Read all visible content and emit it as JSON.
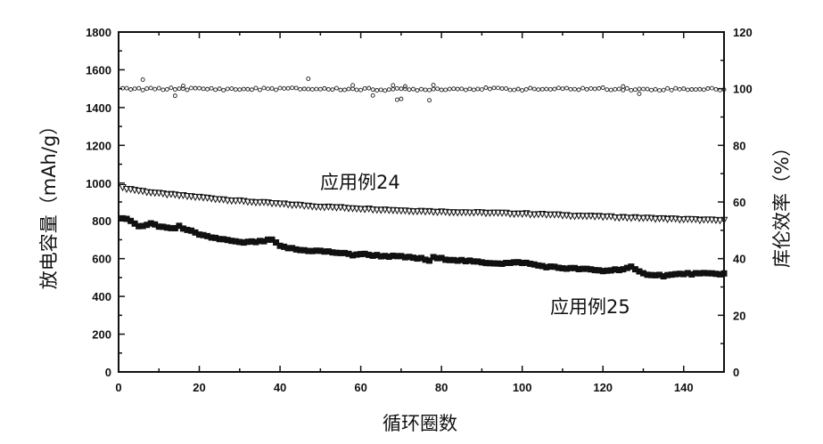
{
  "chart_data": {
    "type": "scatter",
    "title": "",
    "xlabel": "循环圈数",
    "ylabel": "放电容量（mAh/g）",
    "y2label": "库伦效率（%）",
    "xlim": [
      0,
      150
    ],
    "ylim": [
      0,
      1800
    ],
    "y2lim": [
      0,
      120
    ],
    "x_ticks": [
      "0",
      "20",
      "40",
      "60",
      "80",
      "100",
      "120",
      "140"
    ],
    "y_ticks": [
      "0",
      "200",
      "400",
      "600",
      "800",
      "1000",
      "1200",
      "1400",
      "1600",
      "1800"
    ],
    "y2_ticks": [
      "0",
      "20",
      "40",
      "60",
      "80",
      "100",
      "120"
    ],
    "grid": false,
    "annotations": [
      {
        "text": "应用例24",
        "x": 72,
        "y": 1010
      },
      {
        "text": "应用例25",
        "x": 107,
        "y": 370
      }
    ],
    "series": [
      {
        "axis": "left",
        "marker": "down-triangle",
        "x": [
          1,
          5,
          10,
          20,
          30,
          40,
          50,
          60,
          70,
          80,
          90,
          100,
          110,
          120,
          130,
          140,
          150
        ],
        "values": [
          975,
          960,
          945,
          925,
          905,
          890,
          875,
          865,
          855,
          848,
          843,
          838,
          830,
          822,
          815,
          808,
          802
        ]
      },
      {
        "axis": "left",
        "marker": "square",
        "x": [
          1,
          3,
          5,
          8,
          10,
          14,
          15,
          17,
          20,
          25,
          30,
          35,
          38,
          40,
          45,
          50,
          55,
          58,
          60,
          62,
          65,
          70,
          75,
          77,
          78,
          80,
          85,
          90,
          95,
          100,
          105,
          110,
          115,
          120,
          125,
          127,
          128,
          130,
          135,
          140,
          145,
          150
        ],
        "values": [
          815,
          800,
          770,
          785,
          770,
          760,
          770,
          755,
          725,
          705,
          685,
          690,
          700,
          665,
          645,
          640,
          630,
          620,
          625,
          620,
          615,
          610,
          600,
          590,
          605,
          600,
          590,
          580,
          575,
          580,
          560,
          550,
          545,
          535,
          545,
          555,
          540,
          520,
          510,
          520,
          520,
          520
        ]
      },
      {
        "axis": "right",
        "marker": "circle",
        "x": [
          1,
          5,
          10,
          15,
          20,
          30,
          40,
          50,
          60,
          70,
          80,
          90,
          100,
          110,
          120,
          130,
          140,
          150
        ],
        "values": [
          100,
          99.8,
          99.9,
          100,
          99.9,
          99.8,
          100,
          99.9,
          99.8,
          99.7,
          99.9,
          100,
          99.8,
          99.9,
          100,
          99.7,
          99.9,
          99.8
        ],
        "outliers_x": [
          6,
          14,
          16,
          47,
          58,
          63,
          68,
          69,
          70,
          71,
          77,
          78,
          125,
          129
        ],
        "outliers_values": [
          103.2,
          97.5,
          101,
          103.5,
          101.2,
          97.6,
          101.2,
          96.1,
          96.4,
          100.8,
          95.9,
          101.3,
          100.8,
          98.2
        ]
      }
    ]
  }
}
